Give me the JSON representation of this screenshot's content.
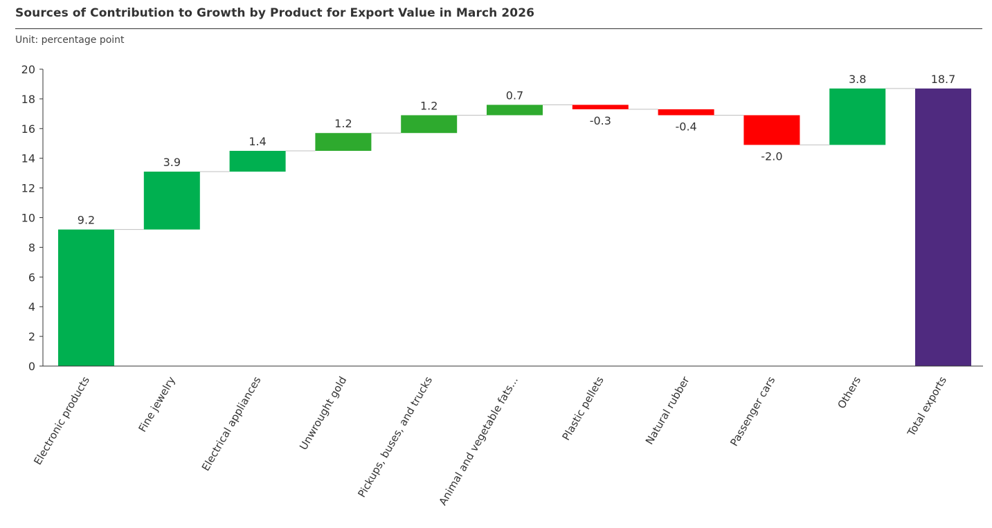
{
  "title": "Sources of Contribution to Growth by Product for Export Value in March 2026",
  "unit": "Unit: percentage point",
  "colors": {
    "increase": "#00b050",
    "increase_alt": "#2eaa2e",
    "decrease": "#ff0000",
    "total": "#4f2a7f",
    "axis": "#333333",
    "connector": "#bfbfbf",
    "text": "#333333"
  },
  "chart_data": {
    "type": "bar",
    "subtype": "waterfall",
    "title": "Sources of Contribution to Growth by Product for Export Value in March 2026",
    "xlabel": "",
    "ylabel": "",
    "unit": "Unit: percentage point",
    "ylim": [
      0,
      20
    ],
    "yticks": [
      0,
      2,
      4,
      6,
      8,
      10,
      12,
      14,
      16,
      18,
      20
    ],
    "grid": false,
    "legend": "none",
    "categories": [
      "Electronic products",
      "Fine jewelry",
      "Electrical appliances",
      "Unwrought gold",
      "Pickups, buses, and trucks",
      "Animal and vegetable fats...",
      "Plastic pellets",
      "Natural rubber",
      "Passenger cars",
      "Others",
      "Total exports"
    ],
    "values": [
      9.2,
      3.9,
      1.4,
      1.2,
      1.2,
      0.7,
      -0.3,
      -0.4,
      -2.0,
      3.8,
      18.7
    ],
    "value_labels": [
      "9.2",
      "3.9",
      "1.4",
      "1.2",
      "1.2",
      "0.7",
      "-0.3",
      "-0.4",
      "-2.0",
      "3.8",
      "18.7"
    ],
    "bar_kind": [
      "increase",
      "increase",
      "increase",
      "increase_alt",
      "increase_alt",
      "increase_alt",
      "decrease",
      "decrease",
      "decrease",
      "increase",
      "total"
    ]
  }
}
